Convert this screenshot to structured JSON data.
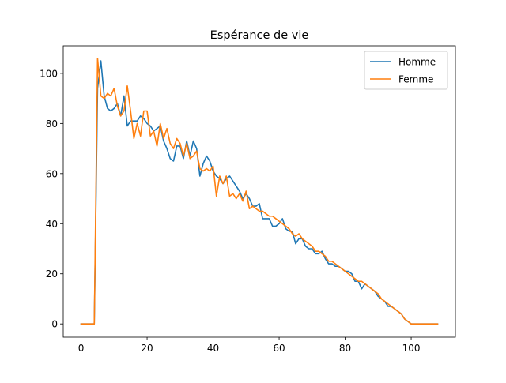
{
  "chart_data": {
    "type": "line",
    "title": "Espérance de vie",
    "xlabel": "",
    "ylabel": "",
    "xlim": [
      -5.4,
      113.4
    ],
    "ylim": [
      -5.3,
      111
    ],
    "x_ticks": [
      0,
      20,
      40,
      60,
      80,
      100
    ],
    "y_ticks": [
      0,
      20,
      40,
      60,
      80,
      100
    ],
    "grid": false,
    "legend_position": "top-right",
    "series": [
      {
        "name": "Homme",
        "color": "#1f77b4",
        "x": [
          0,
          1,
          2,
          3,
          4,
          5,
          6,
          7,
          8,
          9,
          10,
          11,
          12,
          13,
          14,
          15,
          16,
          17,
          18,
          19,
          20,
          21,
          22,
          23,
          24,
          25,
          26,
          27,
          28,
          29,
          30,
          31,
          32,
          33,
          34,
          35,
          36,
          37,
          38,
          39,
          40,
          41,
          42,
          43,
          44,
          45,
          46,
          47,
          48,
          49,
          50,
          51,
          52,
          53,
          54,
          55,
          56,
          57,
          58,
          59,
          60,
          61,
          62,
          63,
          64,
          65,
          66,
          67,
          68,
          69,
          70,
          71,
          72,
          73,
          74,
          75,
          76,
          77,
          78,
          79,
          80,
          81,
          82,
          83,
          84,
          85,
          86,
          87,
          88,
          89,
          90,
          91,
          92,
          93,
          94,
          95,
          96,
          97,
          98,
          99,
          100,
          101,
          102,
          103,
          104,
          105,
          106,
          107,
          108
        ],
        "values": [
          0,
          0,
          0,
          0,
          0,
          94,
          105,
          91,
          86,
          85,
          86,
          88,
          83,
          91,
          79,
          81,
          81,
          81,
          83,
          82,
          80,
          79,
          77,
          78,
          79,
          73,
          70,
          66,
          65,
          71,
          71,
          66,
          73,
          67,
          73,
          70,
          59,
          64,
          67,
          65,
          61,
          59,
          58,
          56,
          58,
          59,
          57,
          55,
          53,
          50,
          52,
          50,
          47,
          47,
          48,
          42,
          42,
          42,
          39,
          39,
          40,
          42,
          38,
          37,
          37,
          32,
          34,
          34,
          31,
          30,
          30,
          28,
          28,
          29,
          26,
          24,
          24,
          23,
          23,
          22,
          21,
          21,
          20,
          17,
          17,
          14,
          16,
          15,
          14,
          13,
          11,
          10,
          9,
          7,
          7,
          6,
          5,
          4,
          2,
          1,
          0,
          0,
          0,
          0,
          0,
          0,
          0,
          0,
          0
        ]
      },
      {
        "name": "Femme",
        "color": "#ff7f0e",
        "x": [
          0,
          1,
          2,
          3,
          4,
          5,
          6,
          7,
          8,
          9,
          10,
          11,
          12,
          13,
          14,
          15,
          16,
          17,
          18,
          19,
          20,
          21,
          22,
          23,
          24,
          25,
          26,
          27,
          28,
          29,
          30,
          31,
          32,
          33,
          34,
          35,
          36,
          37,
          38,
          39,
          40,
          41,
          42,
          43,
          44,
          45,
          46,
          47,
          48,
          49,
          50,
          51,
          52,
          53,
          54,
          55,
          56,
          57,
          58,
          59,
          60,
          61,
          62,
          63,
          64,
          65,
          66,
          67,
          68,
          69,
          70,
          71,
          72,
          73,
          74,
          75,
          76,
          77,
          78,
          79,
          80,
          81,
          82,
          83,
          84,
          85,
          86,
          87,
          88,
          89,
          90,
          91,
          92,
          93,
          94,
          95,
          96,
          97,
          98,
          99,
          100,
          101,
          102,
          103,
          104,
          105,
          106,
          107,
          108
        ],
        "values": [
          0,
          0,
          0,
          0,
          0,
          106,
          91,
          90,
          92,
          91,
          94,
          87,
          83,
          85,
          95,
          85,
          74,
          80,
          75,
          85,
          85,
          75,
          77,
          71,
          80,
          74,
          78,
          72,
          70,
          74,
          72,
          67,
          72,
          66,
          67,
          69,
          62,
          61,
          62,
          61,
          63,
          51,
          59,
          56,
          59,
          51,
          52,
          50,
          52,
          49,
          53,
          46,
          47,
          46,
          45,
          45,
          44,
          43,
          43,
          42,
          41,
          40,
          39,
          38,
          36,
          35,
          36,
          34,
          33,
          32,
          31,
          29,
          29,
          28,
          27,
          25,
          25,
          24,
          23,
          22,
          21,
          20,
          19,
          18,
          17,
          17,
          16,
          15,
          14,
          13,
          12,
          10,
          9,
          8,
          7,
          6,
          5,
          4,
          2,
          1,
          0,
          0,
          0,
          0,
          0,
          0,
          0,
          0,
          0
        ]
      }
    ]
  }
}
